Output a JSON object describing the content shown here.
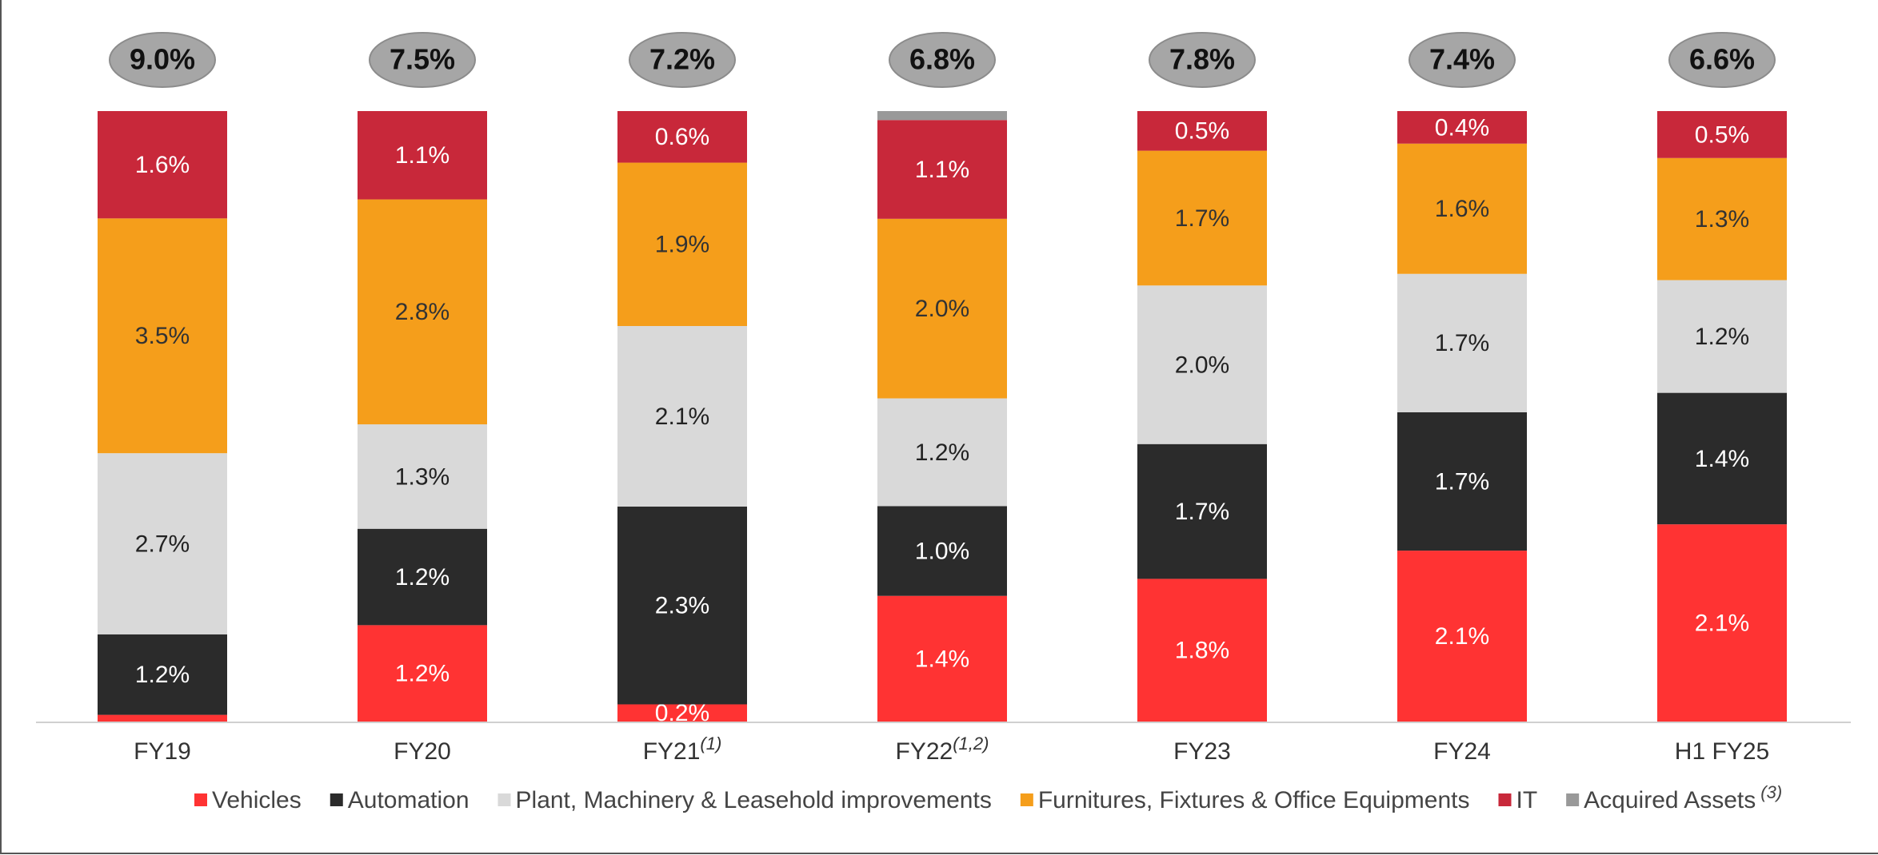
{
  "chart_data": {
    "type": "bar",
    "stacked": "percent",
    "categories": [
      "FY19",
      "FY20",
      "FY21",
      "FY22",
      "FY23",
      "FY24",
      "H1 FY25"
    ],
    "category_notes": [
      null,
      null,
      "(1)",
      "(1,2)",
      null,
      null,
      null
    ],
    "totals": [
      9.0,
      7.5,
      7.2,
      6.8,
      7.8,
      7.4,
      6.6
    ],
    "total_labels": [
      "9.0%",
      "7.5%",
      "7.2%",
      "6.8%",
      "7.8%",
      "7.4%",
      "6.6%"
    ],
    "series": [
      {
        "name": "Vehicles",
        "color": "#ff3333",
        "label_color": "#ffffff",
        "values": [
          0.1,
          1.2,
          0.2,
          1.4,
          1.8,
          2.1,
          2.1
        ],
        "value_labels": [
          null,
          "1.2%",
          "0.2%",
          "1.4%",
          "1.8%",
          "2.1%",
          "2.1%"
        ]
      },
      {
        "name": "Automation",
        "color": "#2b2b2b",
        "label_color": "#ffffff",
        "values": [
          1.2,
          1.2,
          2.3,
          1.0,
          1.7,
          1.7,
          1.4
        ],
        "value_labels": [
          "1.2%",
          "1.2%",
          "2.3%",
          "1.0%",
          "1.7%",
          "1.7%",
          "1.4%"
        ]
      },
      {
        "name": "Plant, Machinery & Leasehold improvements",
        "color": "#d9d9d9",
        "label_color": "#222222",
        "values": [
          2.7,
          1.3,
          2.1,
          1.2,
          2.0,
          1.7,
          1.2
        ],
        "value_labels": [
          "2.7%",
          "1.3%",
          "2.1%",
          "1.2%",
          "2.0%",
          "1.7%",
          "1.2%"
        ]
      },
      {
        "name": "Furnitures, Fixtures & Office Equipments",
        "color": "#f59e1b",
        "label_color": "#333333",
        "values": [
          3.5,
          2.8,
          1.9,
          2.0,
          1.7,
          1.6,
          1.3
        ],
        "value_labels": [
          "3.5%",
          "2.8%",
          "1.9%",
          "2.0%",
          "1.7%",
          "1.6%",
          "1.3%"
        ]
      },
      {
        "name": "IT",
        "color": "#c8283a",
        "label_color": "#ffffff",
        "values": [
          1.6,
          1.1,
          0.6,
          1.1,
          0.5,
          0.4,
          0.5
        ],
        "value_labels": [
          "1.6%",
          "1.1%",
          "0.6%",
          "1.1%",
          "0.5%",
          "0.4%",
          "0.5%"
        ]
      },
      {
        "name": "Acquired Assets",
        "note": "(3)",
        "color": "#999999",
        "label_color": "#ffffff",
        "values": [
          null,
          null,
          null,
          0.1,
          null,
          null,
          null
        ],
        "value_labels": [
          null,
          null,
          null,
          null,
          null,
          null,
          null
        ]
      }
    ]
  }
}
